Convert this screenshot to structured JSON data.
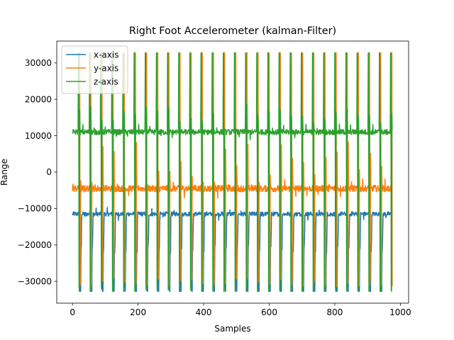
{
  "chart_data": {
    "type": "line",
    "title": "Right Foot Accelerometer (kalman-Filter)",
    "xlabel": "Samples",
    "ylabel": "Range",
    "xlim": [
      -48,
      1025
    ],
    "ylim": [
      -36000,
      36000
    ],
    "xticks": [
      0,
      200,
      400,
      600,
      800,
      1000
    ],
    "yticks": [
      -30000,
      -20000,
      -10000,
      0,
      10000,
      20000,
      30000
    ],
    "grid": false,
    "legend_position": "top-left",
    "series": [
      {
        "name": "x-axis",
        "color": "#1f77b4",
        "baseline": -11500,
        "base_noise": 1200,
        "spike_to": -32768,
        "secondary_to": -21000
      },
      {
        "name": "y-axis",
        "color": "#ff7f0e",
        "baseline": -4500,
        "base_noise": 1800,
        "spike_to": 32767,
        "secondary_to": -30000
      },
      {
        "name": "z-axis",
        "color": "#2ca02c",
        "baseline": 11000,
        "base_noise": 1500,
        "spike_to": 32767,
        "secondary_to": -32768
      }
    ],
    "x_start": 0,
    "x_end": 975,
    "step_cycle_samples": 34
  }
}
